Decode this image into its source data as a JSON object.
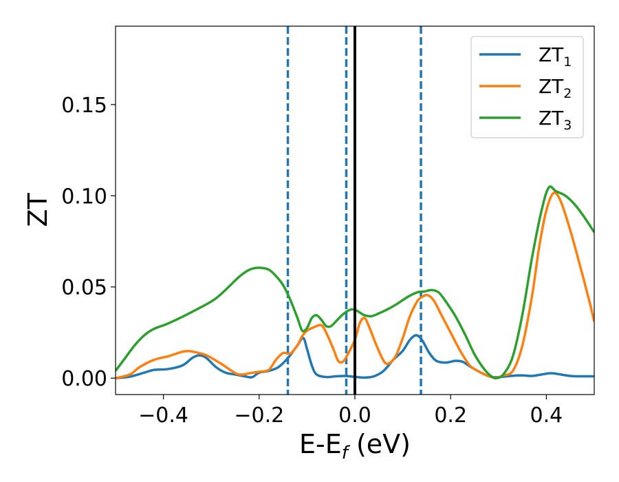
{
  "chart_data": {
    "type": "line",
    "xlabel": {
      "base": "E-E",
      "sub": "f",
      "unit": " (eV)"
    },
    "ylabel": "ZT",
    "xlim": [
      -0.5,
      0.5
    ],
    "ylim": [
      -0.009,
      0.193
    ],
    "xticks": [
      -0.4,
      -0.2,
      0.0,
      0.2,
      0.4
    ],
    "xtick_labels": [
      "−0.4",
      "−0.2",
      "0.0",
      "0.2",
      "0.4"
    ],
    "yticks": [
      0.0,
      0.05,
      0.1,
      0.15
    ],
    "ytick_labels": [
      "0.00",
      "0.05",
      "0.10",
      "0.15"
    ],
    "grid": false,
    "legend_position": "top-right",
    "vlines": [
      {
        "x": -0.14,
        "style": "dashed",
        "color": "#1f77b4"
      },
      {
        "x": -0.018,
        "style": "dashed",
        "color": "#1f77b4"
      },
      {
        "x": 0.138,
        "style": "dashed",
        "color": "#1f77b4"
      },
      {
        "x": 0.0,
        "style": "solid",
        "color": "#000000"
      }
    ],
    "series": [
      {
        "name": "ZT",
        "sub": "1",
        "color": "#1f77b4",
        "points": [
          [
            -0.5,
            0.0
          ],
          [
            -0.47,
            0.0008
          ],
          [
            -0.44,
            0.003
          ],
          [
            -0.42,
            0.0045
          ],
          [
            -0.39,
            0.005
          ],
          [
            -0.36,
            0.007
          ],
          [
            -0.34,
            0.011
          ],
          [
            -0.325,
            0.0125
          ],
          [
            -0.31,
            0.011
          ],
          [
            -0.29,
            0.006
          ],
          [
            -0.27,
            0.003
          ],
          [
            -0.25,
            0.002
          ],
          [
            -0.23,
            0.001
          ],
          [
            -0.215,
            0.0005
          ],
          [
            -0.2,
            0.003
          ],
          [
            -0.18,
            0.004
          ],
          [
            -0.16,
            0.006
          ],
          [
            -0.14,
            0.011
          ],
          [
            -0.12,
            0.018
          ],
          [
            -0.108,
            0.022
          ],
          [
            -0.1,
            0.016
          ],
          [
            -0.09,
            0.007
          ],
          [
            -0.08,
            0.002
          ],
          [
            -0.06,
            0.0006
          ],
          [
            -0.04,
            0.001
          ],
          [
            -0.02,
            0.0012
          ],
          [
            0.0,
            0.0007
          ],
          [
            0.02,
            0.0003
          ],
          [
            0.04,
            0.001
          ],
          [
            0.06,
            0.004
          ],
          [
            0.08,
            0.01
          ],
          [
            0.1,
            0.015
          ],
          [
            0.115,
            0.021
          ],
          [
            0.128,
            0.0235
          ],
          [
            0.14,
            0.021
          ],
          [
            0.155,
            0.014
          ],
          [
            0.17,
            0.0095
          ],
          [
            0.19,
            0.0085
          ],
          [
            0.21,
            0.0095
          ],
          [
            0.225,
            0.009
          ],
          [
            0.24,
            0.0065
          ],
          [
            0.26,
            0.0035
          ],
          [
            0.28,
            0.001
          ],
          [
            0.295,
            0.0005
          ],
          [
            0.31,
            0.0008
          ],
          [
            0.33,
            0.0013
          ],
          [
            0.35,
            0.0015
          ],
          [
            0.37,
            0.0012
          ],
          [
            0.39,
            0.002
          ],
          [
            0.41,
            0.0027
          ],
          [
            0.43,
            0.002
          ],
          [
            0.45,
            0.0012
          ],
          [
            0.47,
            0.001
          ],
          [
            0.5,
            0.001
          ]
        ]
      },
      {
        "name": "ZT",
        "sub": "2",
        "color": "#ff7f0e",
        "points": [
          [
            -0.5,
            0.0
          ],
          [
            -0.47,
            0.002
          ],
          [
            -0.45,
            0.006
          ],
          [
            -0.42,
            0.01
          ],
          [
            -0.39,
            0.012
          ],
          [
            -0.36,
            0.0145
          ],
          [
            -0.345,
            0.0148
          ],
          [
            -0.33,
            0.014
          ],
          [
            -0.31,
            0.0125
          ],
          [
            -0.28,
            0.008
          ],
          [
            -0.25,
            0.0028
          ],
          [
            -0.235,
            0.002
          ],
          [
            -0.22,
            0.0027
          ],
          [
            -0.2,
            0.0035
          ],
          [
            -0.18,
            0.0045
          ],
          [
            -0.165,
            0.01
          ],
          [
            -0.15,
            0.0138
          ],
          [
            -0.135,
            0.0135
          ],
          [
            -0.12,
            0.018
          ],
          [
            -0.11,
            0.023
          ],
          [
            -0.1,
            0.026
          ],
          [
            -0.085,
            0.028
          ],
          [
            -0.07,
            0.029
          ],
          [
            -0.06,
            0.025
          ],
          [
            -0.045,
            0.016
          ],
          [
            -0.035,
            0.0095
          ],
          [
            -0.025,
            0.009
          ],
          [
            -0.015,
            0.013
          ],
          [
            0.0,
            0.021
          ],
          [
            0.01,
            0.03
          ],
          [
            0.02,
            0.033
          ],
          [
            0.03,
            0.028
          ],
          [
            0.045,
            0.018
          ],
          [
            0.06,
            0.0095
          ],
          [
            0.07,
            0.008
          ],
          [
            0.085,
            0.012
          ],
          [
            0.1,
            0.022
          ],
          [
            0.115,
            0.034
          ],
          [
            0.13,
            0.042
          ],
          [
            0.14,
            0.0445
          ],
          [
            0.152,
            0.0455
          ],
          [
            0.165,
            0.0425
          ],
          [
            0.18,
            0.035
          ],
          [
            0.2,
            0.025
          ],
          [
            0.22,
            0.015
          ],
          [
            0.24,
            0.007
          ],
          [
            0.26,
            0.0035
          ],
          [
            0.28,
            0.001
          ],
          [
            0.295,
            0.0002
          ],
          [
            0.31,
            0.0015
          ],
          [
            0.33,
            0.004
          ],
          [
            0.35,
            0.018
          ],
          [
            0.37,
            0.045
          ],
          [
            0.385,
            0.072
          ],
          [
            0.4,
            0.092
          ],
          [
            0.415,
            0.1015
          ],
          [
            0.43,
            0.097
          ],
          [
            0.45,
            0.081
          ],
          [
            0.47,
            0.062
          ],
          [
            0.49,
            0.042
          ],
          [
            0.5,
            0.031
          ]
        ]
      },
      {
        "name": "ZT",
        "sub": "3",
        "color": "#2ca02c",
        "points": [
          [
            -0.5,
            0.004
          ],
          [
            -0.48,
            0.011
          ],
          [
            -0.46,
            0.018
          ],
          [
            -0.44,
            0.0235
          ],
          [
            -0.42,
            0.027
          ],
          [
            -0.39,
            0.03
          ],
          [
            -0.35,
            0.035
          ],
          [
            -0.3,
            0.042
          ],
          [
            -0.28,
            0.046
          ],
          [
            -0.26,
            0.051
          ],
          [
            -0.24,
            0.056
          ],
          [
            -0.22,
            0.0595
          ],
          [
            -0.2,
            0.0605
          ],
          [
            -0.18,
            0.0595
          ],
          [
            -0.165,
            0.056
          ],
          [
            -0.15,
            0.051
          ],
          [
            -0.135,
            0.043
          ],
          [
            -0.12,
            0.033
          ],
          [
            -0.11,
            0.026
          ],
          [
            -0.1,
            0.0275
          ],
          [
            -0.09,
            0.033
          ],
          [
            -0.08,
            0.0345
          ],
          [
            -0.07,
            0.032
          ],
          [
            -0.06,
            0.0285
          ],
          [
            -0.05,
            0.0285
          ],
          [
            -0.04,
            0.031
          ],
          [
            -0.025,
            0.035
          ],
          [
            -0.01,
            0.0375
          ],
          [
            0.0,
            0.0375
          ],
          [
            0.01,
            0.036
          ],
          [
            0.02,
            0.0345
          ],
          [
            0.035,
            0.034
          ],
          [
            0.05,
            0.0355
          ],
          [
            0.07,
            0.038
          ],
          [
            0.09,
            0.041
          ],
          [
            0.11,
            0.0445
          ],
          [
            0.13,
            0.047
          ],
          [
            0.145,
            0.0475
          ],
          [
            0.16,
            0.0483
          ],
          [
            0.175,
            0.047
          ],
          [
            0.19,
            0.042
          ],
          [
            0.21,
            0.034
          ],
          [
            0.23,
            0.024
          ],
          [
            0.25,
            0.013
          ],
          [
            0.27,
            0.005
          ],
          [
            0.285,
            0.001
          ],
          [
            0.295,
            0.0
          ],
          [
            0.31,
            0.002
          ],
          [
            0.33,
            0.012
          ],
          [
            0.35,
            0.035
          ],
          [
            0.37,
            0.066
          ],
          [
            0.39,
            0.092
          ],
          [
            0.405,
            0.1045
          ],
          [
            0.42,
            0.1025
          ],
          [
            0.44,
            0.1
          ],
          [
            0.46,
            0.095
          ],
          [
            0.48,
            0.088
          ],
          [
            0.5,
            0.08
          ]
        ]
      }
    ]
  }
}
